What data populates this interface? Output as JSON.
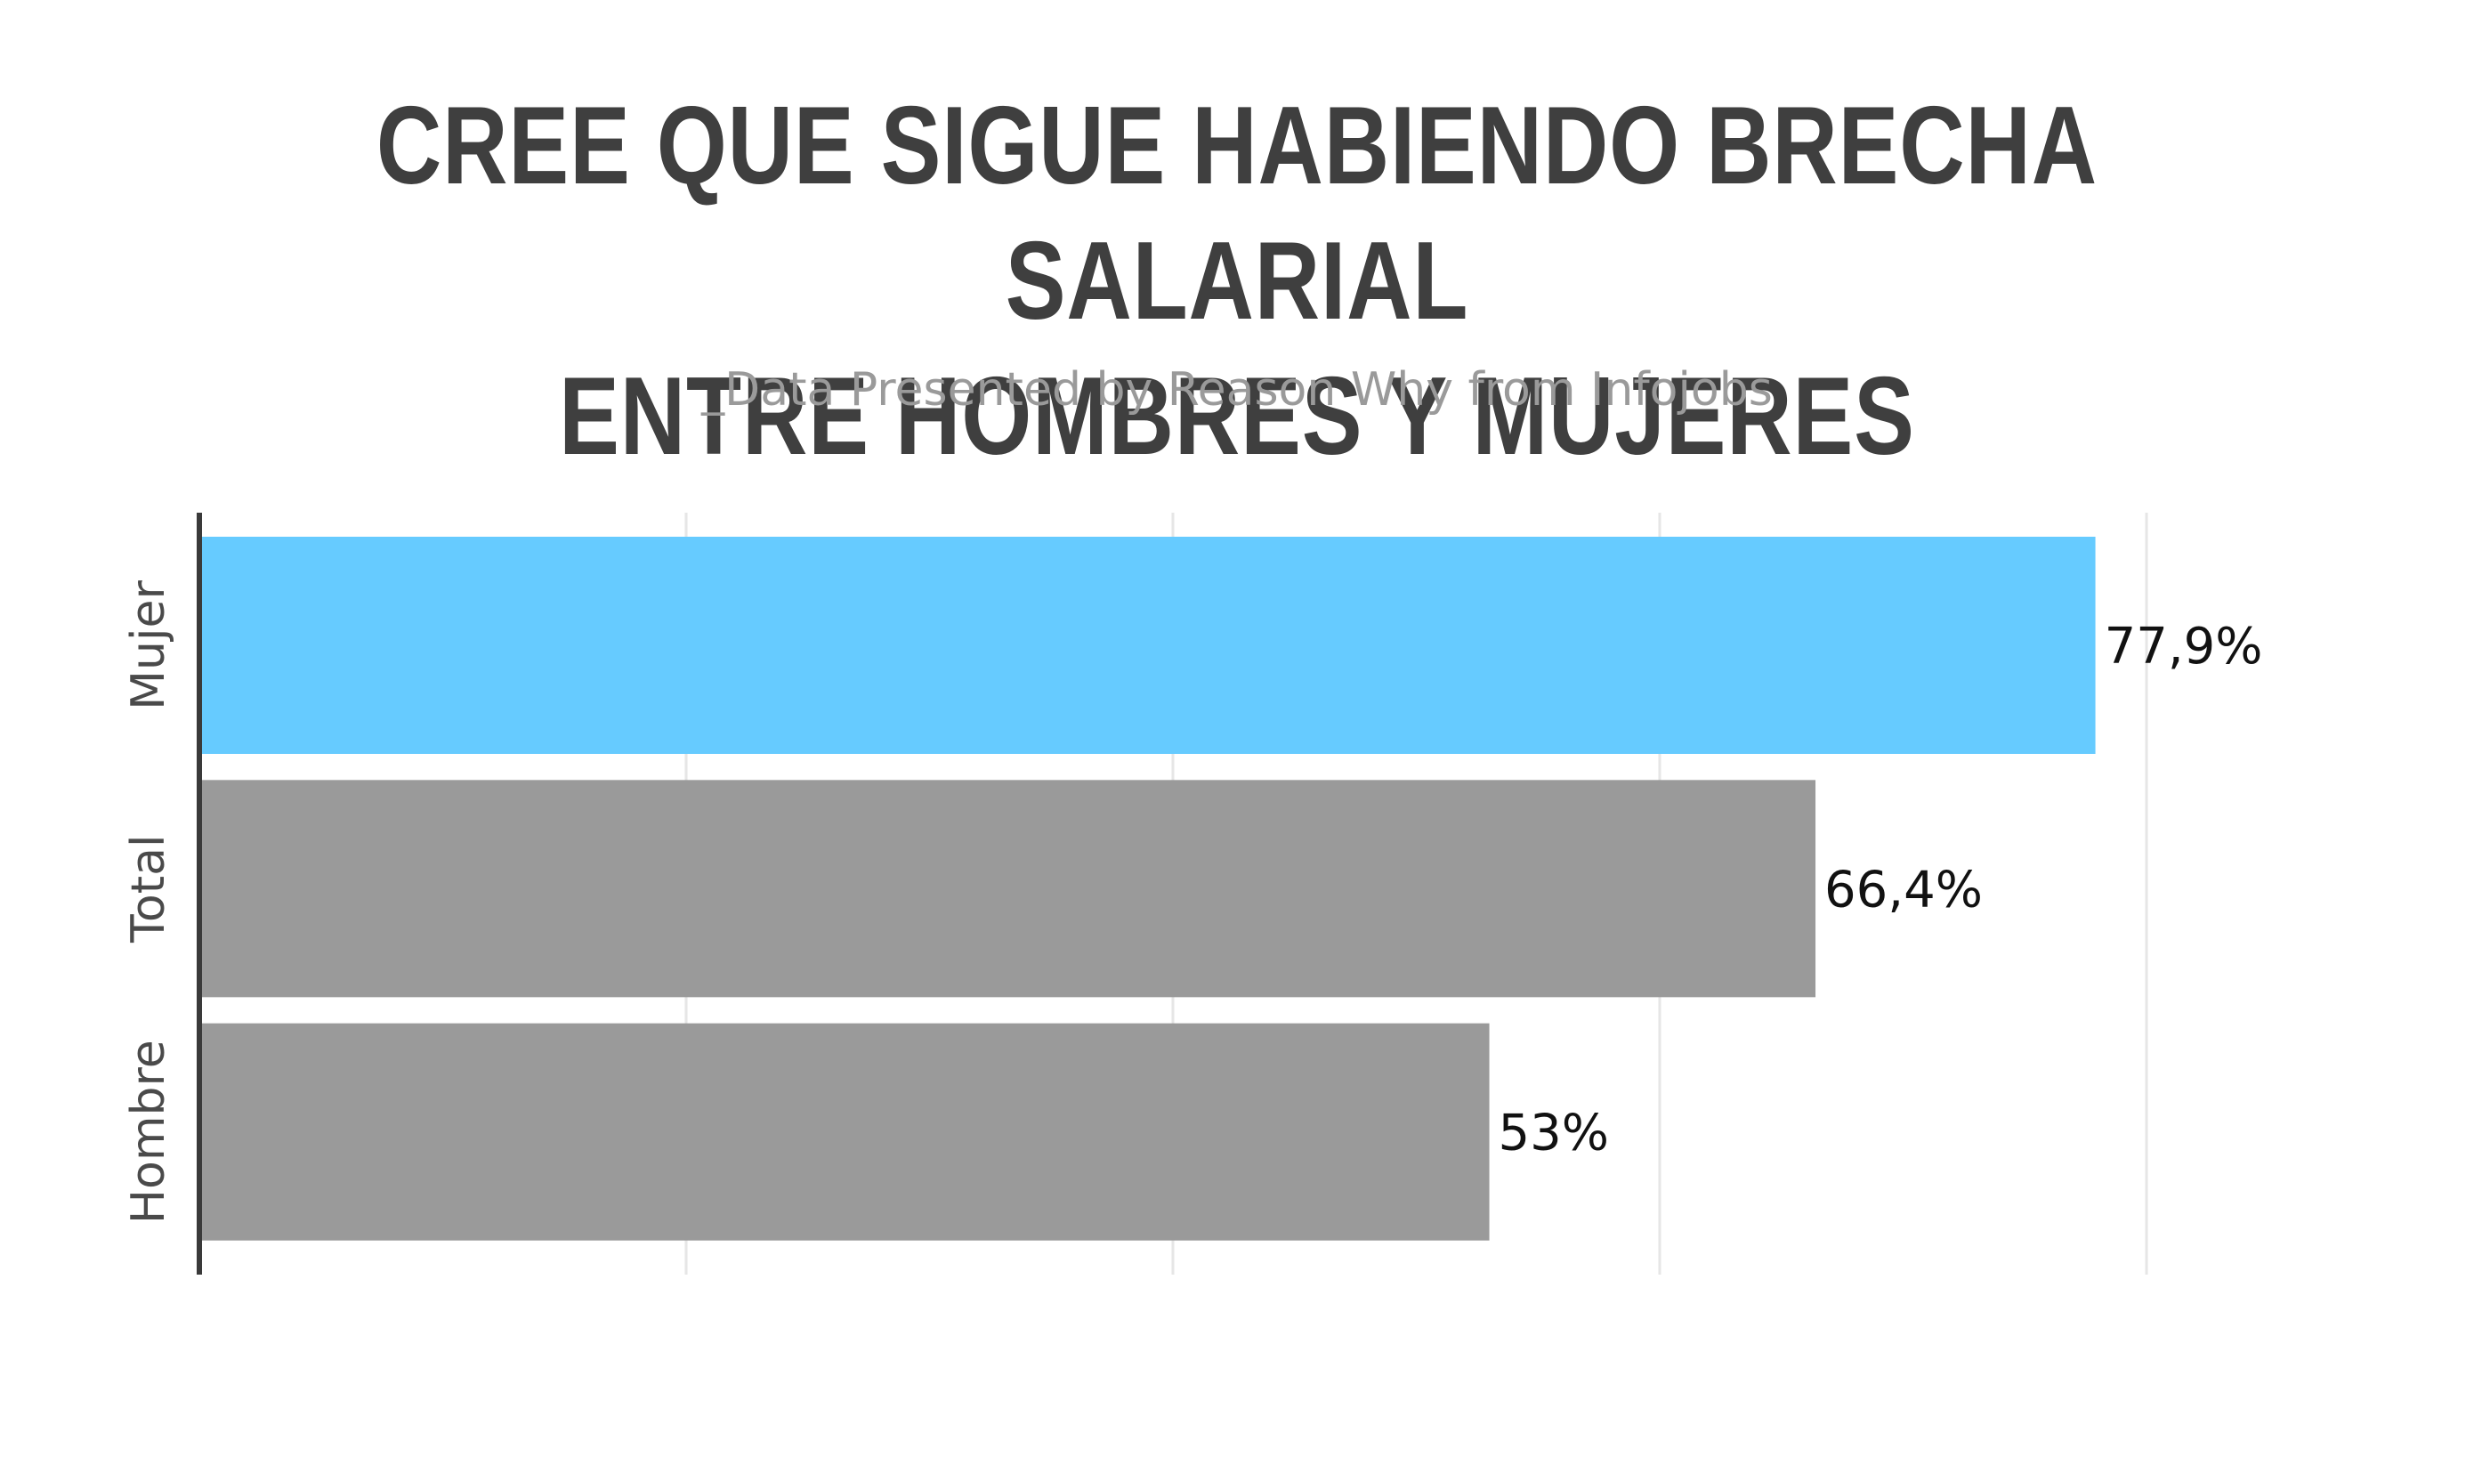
{
  "chart_data": {
    "type": "bar",
    "orientation": "horizontal",
    "title_lines": [
      "CREE QUE SIGUE HABIENDO BRECHA SALARIAL",
      "ENTRE HOMBRES Y MUJERES"
    ],
    "subtitle": "_Data Presented by Reason Why from Infojobs",
    "categories": [
      "Mujer",
      "Total",
      "Hombre"
    ],
    "values": [
      77.9,
      66.4,
      53
    ],
    "value_labels": [
      "77,9%",
      "66,4%",
      "53%"
    ],
    "bar_colors": [
      "#66CBFF",
      "#9A9A9A",
      "#9A9A9A"
    ],
    "xlim": [
      0,
      80
    ],
    "grid": true,
    "xlabel": "",
    "ylabel": ""
  }
}
